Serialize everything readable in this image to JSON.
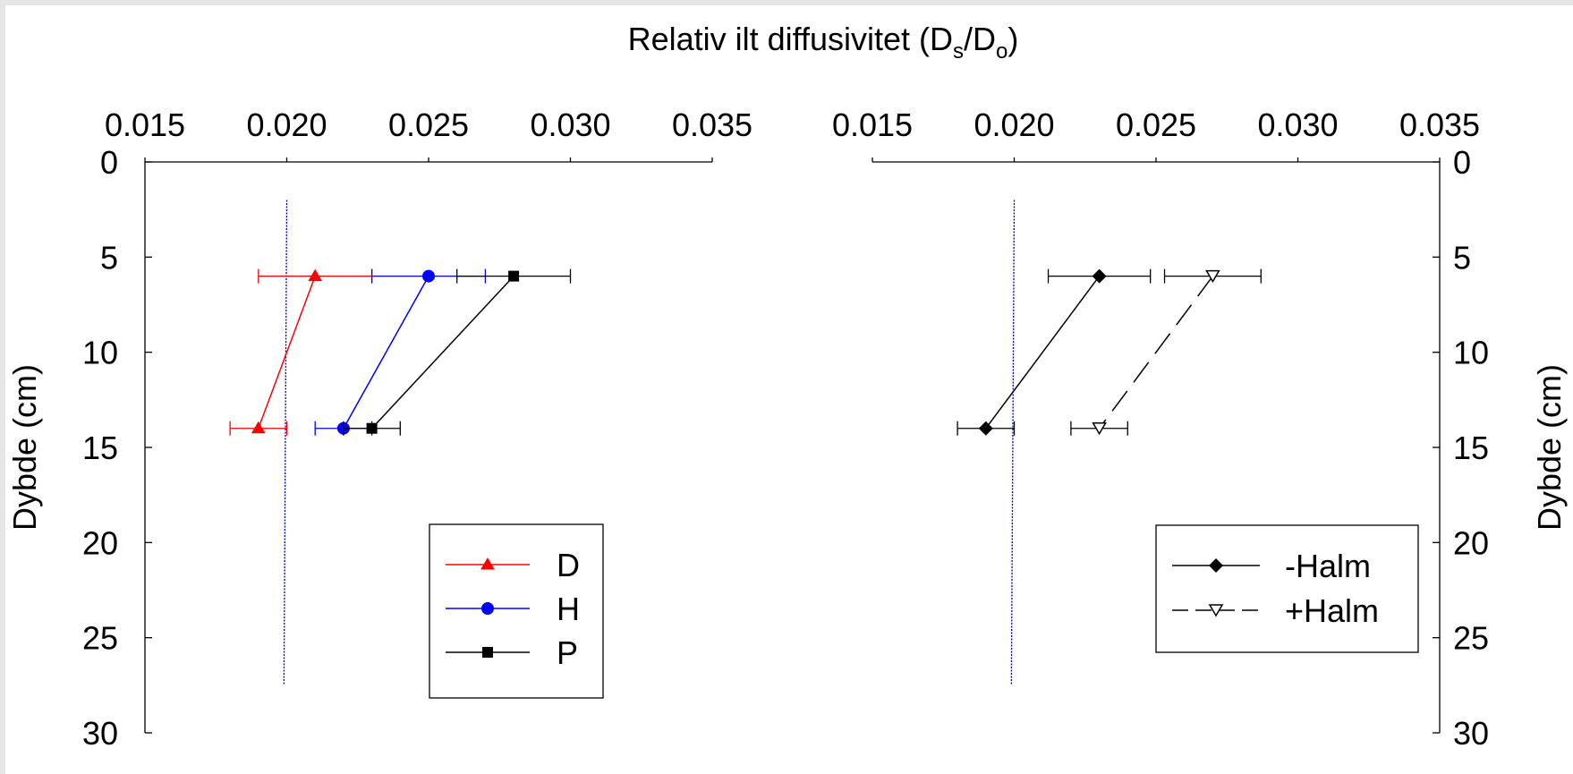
{
  "chart_data": [
    {
      "type": "line",
      "orientation": "horizontal-profile",
      "title": "Relativ ilt diffusivitet (D",
      "title_sub_s": "s",
      "title_mid": "/D",
      "title_sub_o": "o",
      "title_end": ")",
      "ylabel": "Dybde (cm)",
      "xlim": [
        0.015,
        0.035
      ],
      "ylim": [
        0,
        30
      ],
      "x_ticks": [
        "0.015",
        "0.020",
        "0.025",
        "0.030",
        "0.035"
      ],
      "y_ticks": [
        "0",
        "5",
        "10",
        "15",
        "20",
        "25",
        "30"
      ],
      "y_axis_side": "left",
      "reference_line": {
        "color": "#0000cc",
        "points": [
          [
            0.02,
            2
          ],
          [
            0.0199,
            27.5
          ]
        ]
      },
      "legend": "bottom-right",
      "series": [
        {
          "name": "D",
          "color": "#ff0000",
          "marker": "triangle-up",
          "dash": false,
          "points": [
            {
              "x": 0.021,
              "y": 6,
              "err": 0.002
            },
            {
              "x": 0.019,
              "y": 14,
              "err": 0.001
            }
          ]
        },
        {
          "name": "H",
          "color": "#0000ff",
          "marker": "circle",
          "dash": false,
          "points": [
            {
              "x": 0.025,
              "y": 6,
              "err": 0.002
            },
            {
              "x": 0.022,
              "y": 14,
              "err": 0.001
            }
          ]
        },
        {
          "name": "P",
          "color": "#000000",
          "marker": "square",
          "dash": false,
          "points": [
            {
              "x": 0.028,
              "y": 6,
              "err": 0.002
            },
            {
              "x": 0.023,
              "y": 14,
              "err": 0.001
            }
          ]
        }
      ]
    },
    {
      "type": "line",
      "orientation": "horizontal-profile",
      "ylabel": "Dybde (cm)",
      "xlim": [
        0.015,
        0.035
      ],
      "ylim": [
        0,
        30
      ],
      "x_ticks": [
        "0.015",
        "0.020",
        "0.025",
        "0.030",
        "0.035"
      ],
      "y_ticks": [
        "0",
        "5",
        "10",
        "15",
        "20",
        "25",
        "30"
      ],
      "y_axis_side": "right",
      "reference_line": {
        "color": "#0000cc",
        "points": [
          [
            0.02,
            2
          ],
          [
            0.0199,
            27.5
          ]
        ]
      },
      "legend": "bottom-right",
      "series": [
        {
          "name": "-Halm",
          "color": "#000000",
          "marker": "diamond",
          "dash": false,
          "points": [
            {
              "x": 0.023,
              "y": 6,
              "err": 0.0018
            },
            {
              "x": 0.019,
              "y": 14,
              "err": 0.001
            }
          ]
        },
        {
          "name": "+Halm",
          "color": "#000000",
          "marker": "triangle-down-open",
          "dash": true,
          "points": [
            {
              "x": 0.027,
              "y": 6,
              "err": 0.0017
            },
            {
              "x": 0.023,
              "y": 14,
              "err": 0.001
            }
          ]
        }
      ]
    }
  ]
}
